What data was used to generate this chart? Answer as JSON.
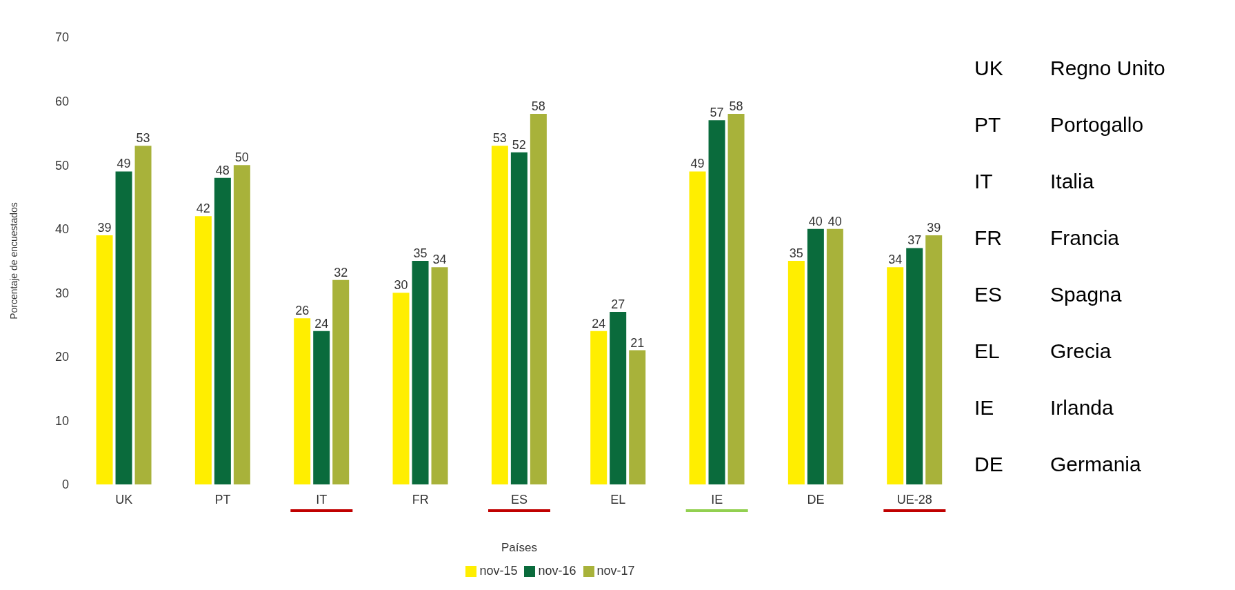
{
  "chart_data": {
    "type": "bar",
    "xlabel": "Países",
    "ylabel": "Porcentaje de encuestados",
    "categories": [
      "UK",
      "PT",
      "IT",
      "FR",
      "ES",
      "EL",
      "IE",
      "DE",
      "UE-28"
    ],
    "series": [
      {
        "name": "nov-15",
        "color": "#ffee00",
        "values": [
          39,
          42,
          26,
          30,
          53,
          24,
          49,
          35,
          34
        ]
      },
      {
        "name": "nov-16",
        "color": "#0a6b3c",
        "values": [
          49,
          48,
          24,
          35,
          52,
          27,
          57,
          40,
          37
        ]
      },
      {
        "name": "nov-17",
        "color": "#a8b23a",
        "values": [
          53,
          50,
          32,
          34,
          58,
          21,
          58,
          40,
          39
        ]
      }
    ],
    "ylim": [
      0,
      70
    ],
    "yticks": [
      0,
      10,
      20,
      30,
      40,
      50,
      60,
      70
    ],
    "grid": false,
    "legend": "bottom",
    "data_labels": true,
    "annotations": [
      "UK",
      "Regno Unito",
      "PT",
      "Portogallo",
      "IT",
      "Italia",
      "FR",
      "Francia",
      "ES",
      "Spagna",
      "EL",
      "Grecia",
      "IE",
      "Irlanda",
      "DE",
      "Germania"
    ]
  }
}
